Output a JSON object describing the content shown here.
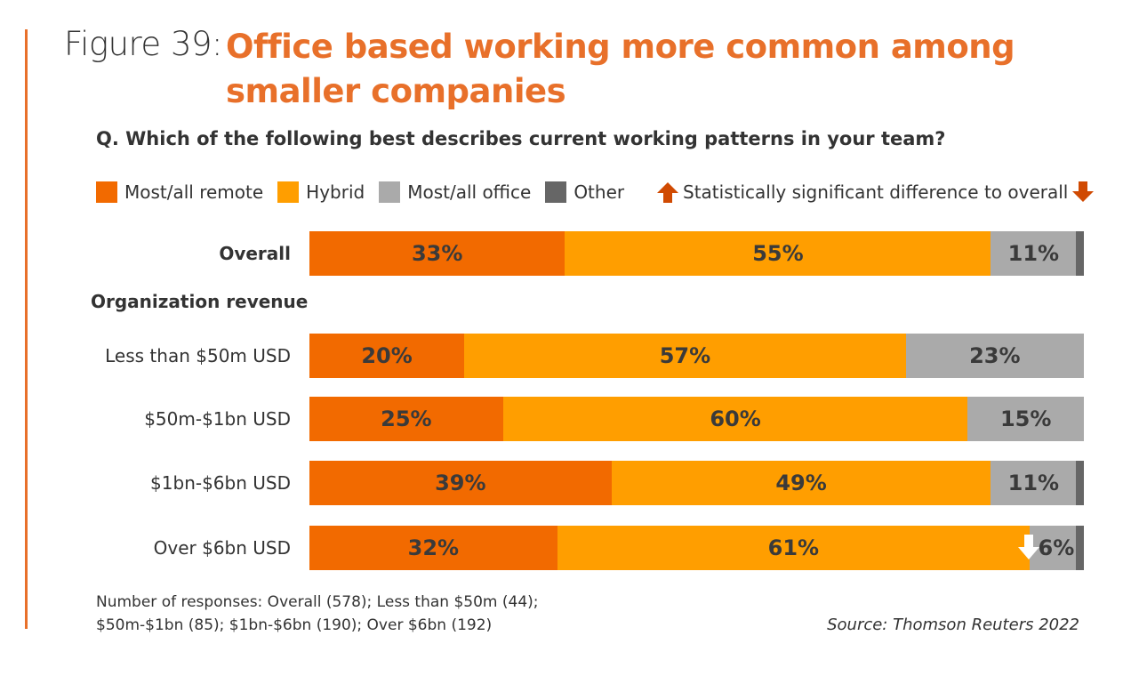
{
  "figure": {
    "label": "Figure 39:",
    "title_line1": "Office based working more common among",
    "title_line2": "smaller companies"
  },
  "question": "Q. Which of the following best describes current working patterns in your team?",
  "legend": [
    {
      "label": "Most/all remote",
      "color": "#f26a00"
    },
    {
      "label": "Hybrid",
      "color": "#ff9e00"
    },
    {
      "label": "Most/all office",
      "color": "#aaaaaa"
    },
    {
      "label": "Other",
      "color": "#666666"
    }
  ],
  "significance_note": "Statistically significant difference to overall",
  "significance_up_color": "#d04a02",
  "group_label": "Organization revenue",
  "footnote_line1": "Number of responses: Overall (578); Less than $50m (44);",
  "footnote_line2": "$50m-$1bn (85); $1bn-$6bn (190); Over $6bn (192)",
  "source": "Source: Thomson Reuters 2022",
  "chart_data": {
    "type": "bar",
    "orientation": "horizontal",
    "stacked": true,
    "normalized": true,
    "title": "Office based working more common among smaller companies",
    "subtitle": "Q. Which of the following best describes current working patterns in your team?",
    "xlabel": "",
    "ylabel": "",
    "xlim": [
      0,
      100
    ],
    "unit": "%",
    "grid": false,
    "legend_position": "top",
    "categories": [
      "Overall",
      "Less than $50m USD",
      "$50m-$1bn USD",
      "$1bn-$6bn USD",
      "Over $6bn USD"
    ],
    "category_bold": [
      true,
      false,
      false,
      false,
      false
    ],
    "series": [
      {
        "name": "Most/all remote",
        "color": "#f26a00",
        "values": [
          33,
          20,
          25,
          39,
          32
        ],
        "labels": [
          "33%",
          "20%",
          "25%",
          "39%",
          "32%"
        ]
      },
      {
        "name": "Hybrid",
        "color": "#ff9e00",
        "values": [
          55,
          57,
          60,
          49,
          61
        ],
        "labels": [
          "55%",
          "57%",
          "60%",
          "49%",
          "61%"
        ]
      },
      {
        "name": "Most/all office",
        "color": "#aaaaaa",
        "values": [
          11,
          23,
          15,
          11,
          6
        ],
        "labels": [
          "11%",
          "23%",
          "15%",
          "11%",
          "6%"
        ]
      },
      {
        "name": "Other",
        "color": "#666666",
        "values": [
          1,
          0,
          0,
          1,
          1
        ],
        "labels": [
          "",
          "",
          "",
          "",
          ""
        ]
      }
    ],
    "significance_markers": [
      {
        "category": "Over $6bn USD",
        "series": "Most/all office",
        "direction": "down",
        "color": "#ffffff"
      }
    ]
  }
}
